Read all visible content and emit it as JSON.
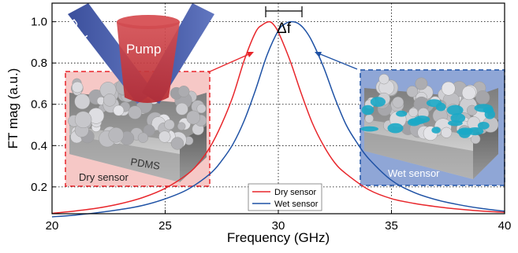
{
  "chart_data": {
    "type": "line",
    "xlabel": "Frequency (GHz)",
    "ylabel": "FT mag (a.u.)",
    "xlim": [
      20,
      40
    ],
    "ylim": [
      0.07,
      1.09
    ],
    "xticks": [
      20,
      25,
      30,
      35,
      40
    ],
    "yticks": [
      0.2,
      0.4,
      0.6,
      0.8,
      1.0
    ],
    "xtick_labels": [
      "20",
      "25",
      "30",
      "35",
      "40"
    ],
    "ytick_labels": [
      "0.2",
      "0.4",
      "0.6",
      "0.8",
      "1.0"
    ],
    "grid": "dotted",
    "legend_position": "bottom-center",
    "series": [
      {
        "name": "Dry sensor",
        "color": "#e8262b",
        "x": [
          20,
          21,
          22,
          23,
          24,
          25,
          26,
          26.5,
          27,
          27.5,
          28,
          28.5,
          29,
          29.3,
          29.6,
          29.8,
          30,
          30.3,
          30.6,
          31,
          31.5,
          32,
          32.5,
          33,
          34,
          35,
          36,
          37,
          38,
          39,
          40
        ],
        "y": [
          0.072,
          0.083,
          0.097,
          0.118,
          0.148,
          0.193,
          0.263,
          0.318,
          0.396,
          0.505,
          0.641,
          0.815,
          0.95,
          0.985,
          1.0,
          0.985,
          0.95,
          0.873,
          0.787,
          0.657,
          0.51,
          0.4,
          0.316,
          0.263,
          0.186,
          0.143,
          0.12,
          0.104,
          0.092,
          0.083,
          0.077
        ]
      },
      {
        "name": "Wet sensor",
        "color": "#1f52a5",
        "x": [
          20,
          21,
          22,
          23,
          24,
          25,
          26,
          27,
          27.5,
          28,
          28.5,
          29,
          29.5,
          30,
          30.3,
          30.6,
          30.9,
          31.2,
          31.5,
          32,
          32.5,
          33,
          33.5,
          34,
          35,
          36,
          37,
          38,
          39,
          40
        ],
        "y": [
          0.055,
          0.063,
          0.075,
          0.09,
          0.11,
          0.142,
          0.188,
          0.265,
          0.327,
          0.408,
          0.523,
          0.672,
          0.838,
          0.957,
          0.99,
          1.0,
          0.99,
          0.957,
          0.903,
          0.78,
          0.63,
          0.5,
          0.41,
          0.336,
          0.232,
          0.173,
          0.137,
          0.113,
          0.095,
          0.082
        ]
      }
    ],
    "annotations": {
      "delta_f": "Δf",
      "probe_label": "Probe",
      "pump_label": "Pump",
      "pdms_label": "PDMS",
      "dry_inset_label": "Dry sensor",
      "wet_inset_label": "Wet sensor"
    },
    "colors": {
      "dry": "#e8262b",
      "wet": "#1f52a5",
      "probe_beam": "#4a62b0",
      "pump_beam": "#cc3a3e",
      "wet_fluid": "#1ba8c6"
    }
  }
}
